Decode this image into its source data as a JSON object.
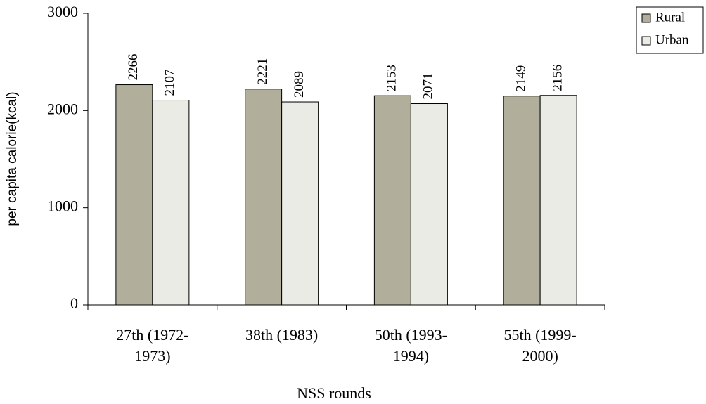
{
  "chart_data": {
    "type": "bar",
    "categories": [
      "27th (1972-\n1973)",
      "38th (1983)",
      "50th (1993-\n1994)",
      "55th (1999-\n2000)"
    ],
    "series": [
      {
        "name": "Rural",
        "color": "#b1af9b",
        "values": [
          2266,
          2221,
          2153,
          2149
        ]
      },
      {
        "name": "Urban",
        "color": "#ebebe6",
        "values": [
          2107,
          2089,
          2071,
          2156
        ]
      }
    ],
    "y_label": "per capita calorie(kcal)",
    "x_label": "NSS rounds",
    "ylim": [
      0,
      3000
    ],
    "yticks": [
      0,
      1000,
      2000,
      3000
    ],
    "grid": false,
    "legend": "right"
  }
}
